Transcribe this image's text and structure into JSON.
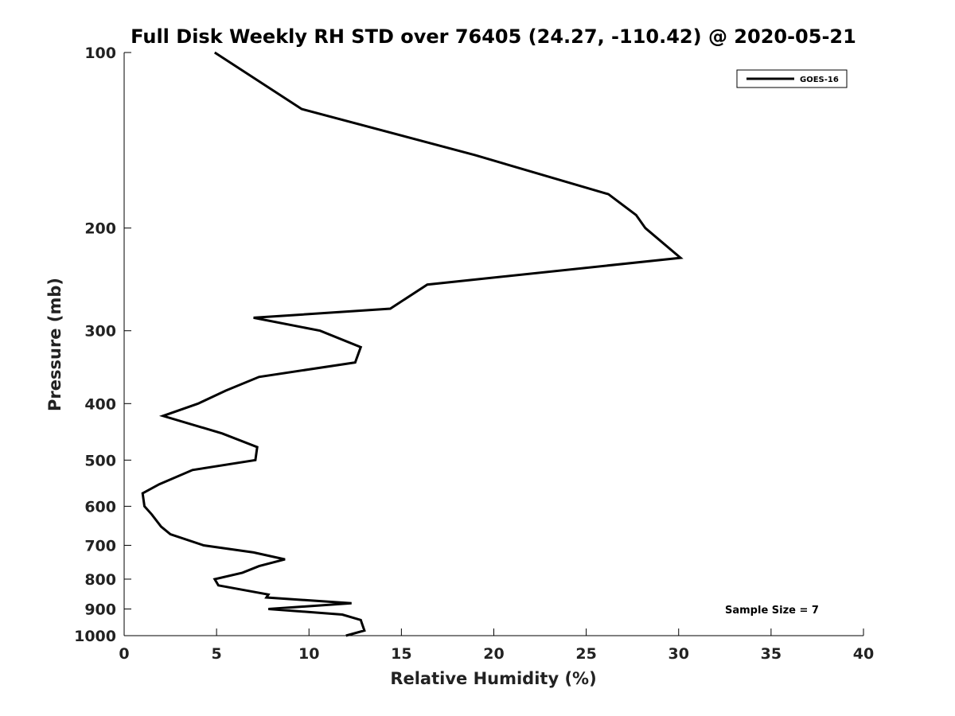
{
  "chart_data": {
    "type": "line",
    "title": "Full Disk Weekly RH STD over 76405 (24.27, -110.42) @ 2020-05-21",
    "xlabel": "Relative Humidity (%)",
    "ylabel": "Pressure (mb)",
    "xlim": [
      0,
      40
    ],
    "ylim": [
      1000,
      100
    ],
    "y_scale": "log",
    "xticks": [
      0,
      5,
      10,
      15,
      20,
      25,
      30,
      35,
      40
    ],
    "xtick_labels": [
      "0",
      "5",
      "10",
      "15",
      "20",
      "25",
      "30",
      "35",
      "40"
    ],
    "yticks": [
      100,
      200,
      300,
      400,
      500,
      600,
      700,
      800,
      900,
      1000
    ],
    "ytick_labels": [
      "100",
      "200",
      "300",
      "400",
      "500",
      "600",
      "700",
      "800",
      "900",
      "1000"
    ],
    "grid": false,
    "legend_position": "top-right",
    "annotation": "Sample Size = 7",
    "series": [
      {
        "name": "GOES-16",
        "color": "#000000",
        "points": [
          [
            4.9,
            100
          ],
          [
            9.6,
            125
          ],
          [
            19.0,
            150
          ],
          [
            26.2,
            175
          ],
          [
            27.7,
            190
          ],
          [
            28.2,
            200
          ],
          [
            30.1,
            225
          ],
          [
            16.4,
            250
          ],
          [
            14.4,
            275
          ],
          [
            7.0,
            285
          ],
          [
            10.6,
            300
          ],
          [
            12.8,
            320
          ],
          [
            12.5,
            340
          ],
          [
            7.3,
            360
          ],
          [
            5.5,
            380
          ],
          [
            4.0,
            400
          ],
          [
            2.1,
            420
          ],
          [
            5.3,
            450
          ],
          [
            7.2,
            475
          ],
          [
            7.1,
            500
          ],
          [
            3.7,
            520
          ],
          [
            1.9,
            550
          ],
          [
            1.0,
            570
          ],
          [
            1.1,
            600
          ],
          [
            1.5,
            620
          ],
          [
            2.0,
            650
          ],
          [
            2.5,
            670
          ],
          [
            4.3,
            700
          ],
          [
            7.0,
            720
          ],
          [
            8.7,
            740
          ],
          [
            7.3,
            760
          ],
          [
            6.4,
            780
          ],
          [
            4.9,
            800
          ],
          [
            5.1,
            820
          ],
          [
            7.8,
            850
          ],
          [
            7.7,
            860
          ],
          [
            12.3,
            880
          ],
          [
            7.8,
            900
          ],
          [
            11.8,
            920
          ],
          [
            12.8,
            940
          ],
          [
            12.9,
            960
          ],
          [
            13.0,
            980
          ],
          [
            12.0,
            1000
          ]
        ]
      }
    ]
  }
}
